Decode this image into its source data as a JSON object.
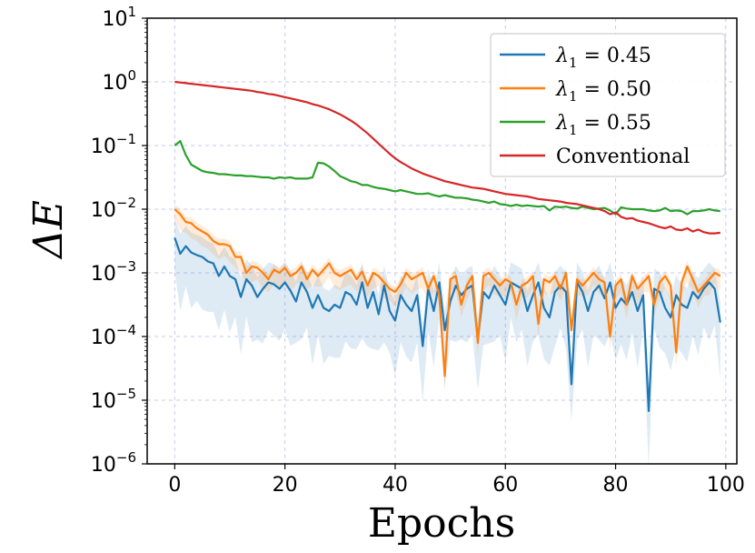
{
  "chart_data": {
    "type": "line",
    "title": "",
    "xlabel": "Epochs",
    "ylabel": "ΔE",
    "yscale": "log",
    "xlim": [
      -5,
      102
    ],
    "ylim_exp": [
      -6,
      1
    ],
    "xticks": [
      0,
      20,
      40,
      60,
      80,
      100
    ],
    "yticks": [
      {
        "base": "10",
        "exp": "1"
      },
      {
        "base": "10",
        "exp": "0"
      },
      {
        "base": "10",
        "exp": "−1"
      },
      {
        "base": "10",
        "exp": "−2"
      },
      {
        "base": "10",
        "exp": "−3"
      },
      {
        "base": "10",
        "exp": "−4"
      },
      {
        "base": "10",
        "exp": "−5"
      },
      {
        "base": "10",
        "exp": "−6"
      }
    ],
    "grid": true,
    "legend_position": "top-right",
    "series": [
      {
        "name": "λ1 = 0.45",
        "label_symbol": "λ",
        "label_sub": "1",
        "label_rest": " = 0.45",
        "color": "#1f77b4",
        "log10_values": [
          -2.45,
          -2.7,
          -2.58,
          -2.68,
          -2.72,
          -2.75,
          -2.82,
          -2.85,
          -3.05,
          -2.9,
          -3.05,
          -3.1,
          -3.38,
          -3.1,
          -3.2,
          -3.38,
          -3.25,
          -3.15,
          -3.18,
          -3.25,
          -3.15,
          -3.28,
          -3.45,
          -3.15,
          -3.3,
          -3.55,
          -3.35,
          -3.55,
          -3.6,
          -3.5,
          -3.55,
          -3.3,
          -3.35,
          -3.5,
          -3.15,
          -3.55,
          -3.3,
          -3.65,
          -3.2,
          -3.6,
          -3.75,
          -3.35,
          -3.5,
          -3.6,
          -3.35,
          -4.15,
          -3.25,
          -3.6,
          -3.15,
          -3.9,
          -3.45,
          -3.2,
          -3.35,
          -3.25,
          -3.2,
          -4.05,
          -3.3,
          -3.4,
          -3.2,
          -3.35,
          -3.5,
          -3.15,
          -3.2,
          -3.25,
          -3.6,
          -3.35,
          -3.15,
          -3.55,
          -3.7,
          -3.3,
          -3.2,
          -3.3,
          -4.75,
          -3.15,
          -3.3,
          -3.6,
          -3.3,
          -3.2,
          -3.4,
          -3.15,
          -3.55,
          -3.4,
          -3.5,
          -3.3,
          -3.6,
          -3.35,
          -5.17,
          -3.25,
          -3.3,
          -3.55,
          -3.7,
          -3.35,
          -3.5,
          -3.55,
          -3.3,
          -3.4,
          -3.25,
          -3.15,
          -3.25,
          -3.78
        ],
        "spread": 0.9
      },
      {
        "name": "λ1 = 0.50",
        "label_symbol": "λ",
        "label_sub": "1",
        "label_rest": " = 0.50",
        "color": "#ff7f0e",
        "log10_values": [
          -2.0,
          -2.08,
          -2.2,
          -2.22,
          -2.3,
          -2.35,
          -2.4,
          -2.5,
          -2.55,
          -2.55,
          -2.58,
          -2.75,
          -2.75,
          -3.0,
          -2.9,
          -2.92,
          -3.0,
          -3.1,
          -2.95,
          -3.0,
          -2.92,
          -3.05,
          -3.0,
          -2.9,
          -3.1,
          -2.95,
          -3.05,
          -2.95,
          -2.85,
          -3.0,
          -3.05,
          -3.0,
          -2.95,
          -3.1,
          -2.98,
          -3.2,
          -3.0,
          -3.05,
          -3.15,
          -3.25,
          -3.3,
          -3.18,
          -3.0,
          -3.1,
          -3.05,
          -3.0,
          -3.25,
          -3.05,
          -3.35,
          -4.62,
          -3.1,
          -3.05,
          -3.5,
          -3.2,
          -3.05,
          -4.1,
          -3.05,
          -3.0,
          -3.1,
          -3.2,
          -3.1,
          -3.15,
          -3.5,
          -3.2,
          -3.15,
          -3.05,
          -3.8,
          -3.1,
          -3.15,
          -3.05,
          -3.25,
          -3.0,
          -3.9,
          -3.1,
          -3.2,
          -3.1,
          -3.0,
          -3.1,
          -3.15,
          -4.0,
          -3.2,
          -3.1,
          -3.5,
          -3.05,
          -3.25,
          -3.15,
          -3.05,
          -3.5,
          -3.15,
          -3.05,
          -3.2,
          -4.25,
          -3.15,
          -2.9,
          -3.1,
          -3.3,
          -3.2,
          -3.1,
          -3.0,
          -3.05
        ],
        "spread": 0.25
      },
      {
        "name": "λ1 = 0.55",
        "label_symbol": "λ",
        "label_sub": "1",
        "label_rest": " = 0.55",
        "color": "#2ca02c",
        "log10_values": [
          -1.0,
          -0.93,
          -1.15,
          -1.3,
          -1.35,
          -1.4,
          -1.42,
          -1.43,
          -1.45,
          -1.45,
          -1.46,
          -1.47,
          -1.47,
          -1.48,
          -1.48,
          -1.49,
          -1.5,
          -1.5,
          -1.52,
          -1.5,
          -1.51,
          -1.5,
          -1.52,
          -1.52,
          -1.52,
          -1.5,
          -1.27,
          -1.28,
          -1.33,
          -1.4,
          -1.48,
          -1.52,
          -1.56,
          -1.58,
          -1.62,
          -1.62,
          -1.65,
          -1.67,
          -1.68,
          -1.7,
          -1.72,
          -1.7,
          -1.72,
          -1.74,
          -1.76,
          -1.76,
          -1.75,
          -1.78,
          -1.8,
          -1.78,
          -1.8,
          -1.82,
          -1.82,
          -1.83,
          -1.85,
          -1.86,
          -1.88,
          -1.9,
          -1.88,
          -1.92,
          -1.93,
          -1.95,
          -1.93,
          -1.95,
          -1.94,
          -1.95,
          -1.96,
          -1.95,
          -2.02,
          -1.96,
          -1.97,
          -1.96,
          -1.98,
          -1.99,
          -1.96,
          -1.98,
          -2.0,
          -1.99,
          -1.98,
          -2.02,
          -2.08,
          -1.97,
          -1.99,
          -2.0,
          -2.0,
          -2.0,
          -2.02,
          -2.03,
          -2.02,
          -1.98,
          -2.03,
          -2.02,
          -2.03,
          -2.08,
          -2.03,
          -2.03,
          -2.02,
          -2.0,
          -2.02,
          -2.03
        ],
        "spread": 0.0
      },
      {
        "name": "Conventional",
        "color": "#d62728",
        "log10_values": [
          0.0,
          -0.01,
          -0.02,
          -0.03,
          -0.04,
          -0.05,
          -0.06,
          -0.07,
          -0.08,
          -0.09,
          -0.1,
          -0.11,
          -0.12,
          -0.13,
          -0.14,
          -0.16,
          -0.17,
          -0.19,
          -0.2,
          -0.22,
          -0.24,
          -0.26,
          -0.28,
          -0.3,
          -0.32,
          -0.35,
          -0.37,
          -0.4,
          -0.43,
          -0.47,
          -0.51,
          -0.56,
          -0.61,
          -0.67,
          -0.74,
          -0.81,
          -0.89,
          -0.97,
          -1.05,
          -1.13,
          -1.2,
          -1.26,
          -1.31,
          -1.36,
          -1.4,
          -1.44,
          -1.47,
          -1.5,
          -1.53,
          -1.56,
          -1.58,
          -1.6,
          -1.62,
          -1.64,
          -1.66,
          -1.67,
          -1.68,
          -1.7,
          -1.72,
          -1.74,
          -1.76,
          -1.77,
          -1.78,
          -1.79,
          -1.8,
          -1.82,
          -1.84,
          -1.85,
          -1.86,
          -1.87,
          -1.88,
          -1.9,
          -1.91,
          -1.92,
          -1.94,
          -1.96,
          -1.98,
          -2.0,
          -2.03,
          -2.08,
          -2.05,
          -2.12,
          -2.15,
          -2.14,
          -2.18,
          -2.2,
          -2.22,
          -2.25,
          -2.28,
          -2.3,
          -2.27,
          -2.32,
          -2.33,
          -2.3,
          -2.35,
          -2.32,
          -2.36,
          -2.38,
          -2.38,
          -2.37
        ],
        "spread": 0.0
      }
    ]
  }
}
